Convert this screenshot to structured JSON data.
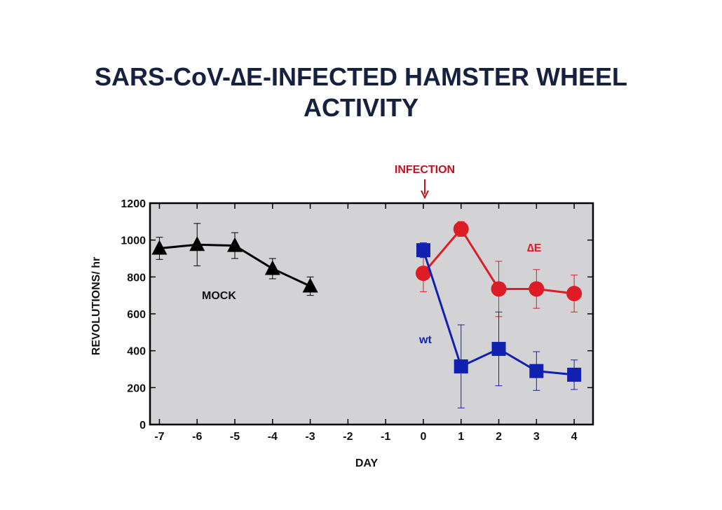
{
  "chart_data": {
    "type": "line",
    "title_line1": "SARS-CoV-∆E-INFECTED HAMSTER WHEEL",
    "title_line2": "ACTIVITY",
    "xlabel": "DAY",
    "ylabel": "REVOLUTIONS/ hr",
    "xlim": [
      -7.25,
      4.5
    ],
    "ylim": [
      0,
      1200
    ],
    "x_ticks": [
      -7,
      -6,
      -5,
      -4,
      -3,
      -2,
      -1,
      0,
      1,
      2,
      3,
      4
    ],
    "y_ticks": [
      0,
      200,
      400,
      600,
      800,
      1000,
      1200
    ],
    "grid": false,
    "background": "#d3d3d6",
    "annotation": {
      "label": "INFECTION",
      "x": 0,
      "color": "#c0121f"
    },
    "series": [
      {
        "name": "MOCK",
        "color": "#000000",
        "marker": "triangle",
        "x": [
          -7,
          -6,
          -5,
          -4,
          -3
        ],
        "y": [
          955,
          975,
          970,
          845,
          750
        ],
        "err": [
          60,
          115,
          70,
          55,
          50
        ]
      },
      {
        "name": "∆E",
        "color": "#dd1c26",
        "marker": "circle",
        "x": [
          0,
          1,
          2,
          3,
          4
        ],
        "y": [
          820,
          1060,
          735,
          735,
          710
        ],
        "err": [
          100,
          40,
          150,
          105,
          100
        ]
      },
      {
        "name": "wt",
        "color": "#1020b0",
        "marker": "square",
        "x": [
          0,
          1,
          2,
          3,
          4
        ],
        "y": [
          945,
          315,
          410,
          290,
          270
        ],
        "err": [
          40,
          225,
          200,
          105,
          80
        ]
      }
    ]
  }
}
